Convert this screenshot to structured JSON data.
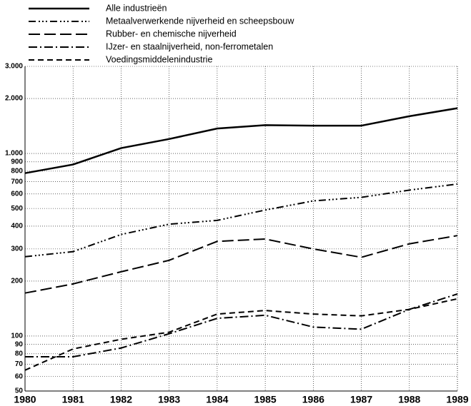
{
  "chart_data": {
    "type": "line",
    "x": [
      1980,
      1981,
      1982,
      1983,
      1984,
      1985,
      1986,
      1987,
      1988,
      1989
    ],
    "xlim": [
      1980,
      1989
    ],
    "xticks": [
      1980,
      1981,
      1982,
      1983,
      1984,
      1985,
      1986,
      1987,
      1988,
      1989
    ],
    "ylim": [
      50,
      3000
    ],
    "log_scale": true,
    "grid": true,
    "yticks": [
      50,
      60,
      70,
      80,
      90,
      100,
      200,
      300,
      400,
      500,
      600,
      700,
      800,
      900,
      {
        "value": 1000,
        "label": "1.000"
      },
      {
        "value": 2000,
        "label": "2.000"
      },
      {
        "value": 3000,
        "label": "3.000"
      }
    ],
    "legend_position": "top",
    "series": [
      {
        "name": "Alle industrieën",
        "color": "#000000",
        "values": [
          780,
          870,
          1070,
          1200,
          1370,
          1430,
          1420,
          1420,
          1600,
          1770
        ]
      },
      {
        "name": "Metaalverwerkende nijverheid en scheepsbouw",
        "color": "#000000",
        "values": [
          272,
          290,
          360,
          410,
          430,
          490,
          550,
          575,
          630,
          680
        ]
      },
      {
        "name": "Rubber- en chemische nijverheid",
        "color": "#000000",
        "values": [
          172,
          193,
          225,
          260,
          330,
          340,
          300,
          270,
          320,
          355
        ]
      },
      {
        "name": "IJzer- en staalnijverheid, non-ferrometalen",
        "color": "#000000",
        "values": [
          77,
          77,
          86,
          103,
          125,
          130,
          112,
          109,
          140,
          170
        ]
      },
      {
        "name": "Voedingsmiddelenindustrie",
        "color": "#000000",
        "values": [
          65,
          85,
          96,
          105,
          132,
          138,
          132,
          129,
          140,
          160
        ]
      }
    ]
  }
}
